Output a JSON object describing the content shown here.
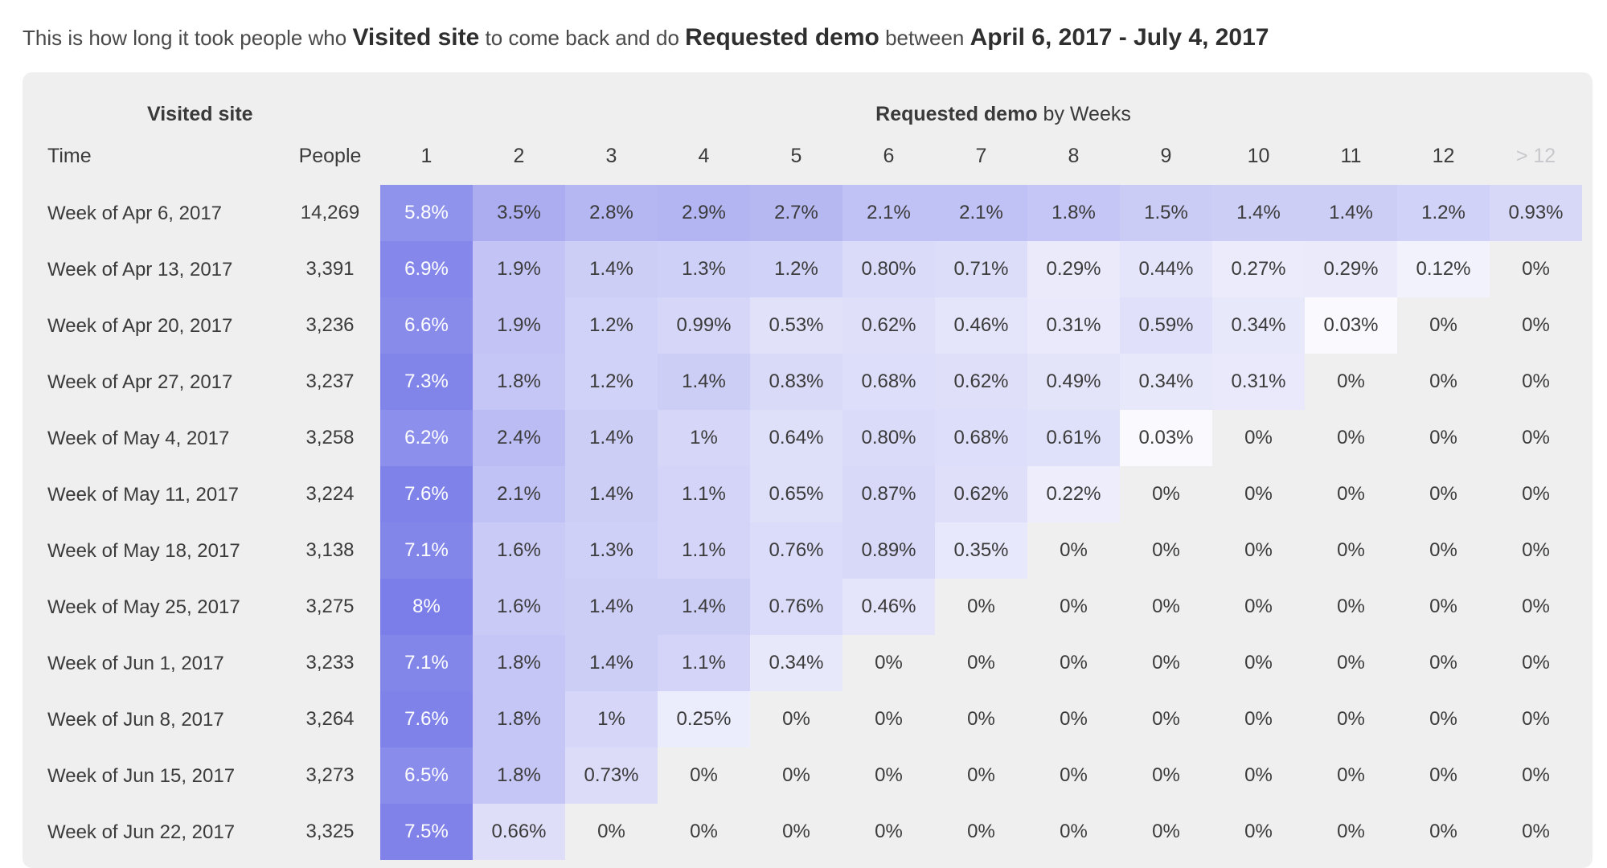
{
  "summary": {
    "prefix": "This is how long it took people who ",
    "event_a": "Visited site",
    "middle": " to come back and do ",
    "event_b": "Requested demo",
    "between": " between ",
    "date_range": "April 6, 2017 - July 4, 2017"
  },
  "colors": {
    "heat_max": "#7b7ee8",
    "heat_min": "#ffffff",
    "text_dark": "#3b3b3b",
    "text_light": "#ffffff"
  },
  "chart_data": {
    "type": "heatmap",
    "row_axis_title": "Visited site",
    "col_axis_title_bold": "Requested demo",
    "col_axis_title_rest": " by Weeks",
    "time_header": "Time",
    "people_header": "People",
    "columns": [
      "1",
      "2",
      "3",
      "4",
      "5",
      "6",
      "7",
      "8",
      "9",
      "10",
      "11",
      "12",
      "> 12"
    ],
    "rows": [
      {
        "label": "Week of Apr 6, 2017",
        "people": "14,269",
        "values": [
          "5.8%",
          "3.5%",
          "2.8%",
          "2.9%",
          "2.7%",
          "2.1%",
          "2.1%",
          "1.8%",
          "1.5%",
          "1.4%",
          "1.4%",
          "1.2%",
          "0.93%"
        ]
      },
      {
        "label": "Week of Apr 13, 2017",
        "people": "3,391",
        "values": [
          "6.9%",
          "1.9%",
          "1.4%",
          "1.3%",
          "1.2%",
          "0.80%",
          "0.71%",
          "0.29%",
          "0.44%",
          "0.27%",
          "0.29%",
          "0.12%",
          "0%"
        ]
      },
      {
        "label": "Week of Apr 20, 2017",
        "people": "3,236",
        "values": [
          "6.6%",
          "1.9%",
          "1.2%",
          "0.99%",
          "0.53%",
          "0.62%",
          "0.46%",
          "0.31%",
          "0.59%",
          "0.34%",
          "0.03%",
          "0%",
          "0%"
        ]
      },
      {
        "label": "Week of Apr 27, 2017",
        "people": "3,237",
        "values": [
          "7.3%",
          "1.8%",
          "1.2%",
          "1.4%",
          "0.83%",
          "0.68%",
          "0.62%",
          "0.49%",
          "0.34%",
          "0.31%",
          "0%",
          "0%",
          "0%"
        ]
      },
      {
        "label": "Week of May 4, 2017",
        "people": "3,258",
        "values": [
          "6.2%",
          "2.4%",
          "1.4%",
          "1%",
          "0.64%",
          "0.80%",
          "0.68%",
          "0.61%",
          "0.03%",
          "0%",
          "0%",
          "0%",
          "0%"
        ]
      },
      {
        "label": "Week of May 11, 2017",
        "people": "3,224",
        "values": [
          "7.6%",
          "2.1%",
          "1.4%",
          "1.1%",
          "0.65%",
          "0.87%",
          "0.62%",
          "0.22%",
          "0%",
          "0%",
          "0%",
          "0%",
          "0%"
        ]
      },
      {
        "label": "Week of May 18, 2017",
        "people": "3,138",
        "values": [
          "7.1%",
          "1.6%",
          "1.3%",
          "1.1%",
          "0.76%",
          "0.89%",
          "0.35%",
          "0%",
          "0%",
          "0%",
          "0%",
          "0%",
          "0%"
        ]
      },
      {
        "label": "Week of May 25, 2017",
        "people": "3,275",
        "values": [
          "8%",
          "1.6%",
          "1.4%",
          "1.4%",
          "0.76%",
          "0.46%",
          "0%",
          "0%",
          "0%",
          "0%",
          "0%",
          "0%",
          "0%"
        ]
      },
      {
        "label": "Week of Jun 1, 2017",
        "people": "3,233",
        "values": [
          "7.1%",
          "1.8%",
          "1.4%",
          "1.1%",
          "0.34%",
          "0%",
          "0%",
          "0%",
          "0%",
          "0%",
          "0%",
          "0%",
          "0%"
        ]
      },
      {
        "label": "Week of Jun 8, 2017",
        "people": "3,264",
        "values": [
          "7.6%",
          "1.8%",
          "1%",
          "0.25%",
          "0%",
          "0%",
          "0%",
          "0%",
          "0%",
          "0%",
          "0%",
          "0%",
          "0%"
        ]
      },
      {
        "label": "Week of Jun 15, 2017",
        "people": "3,273",
        "values": [
          "6.5%",
          "1.8%",
          "0.73%",
          "0%",
          "0%",
          "0%",
          "0%",
          "0%",
          "0%",
          "0%",
          "0%",
          "0%",
          "0%"
        ]
      },
      {
        "label": "Week of Jun 22, 2017",
        "people": "3,325",
        "values": [
          "7.5%",
          "0.66%",
          "0%",
          "0%",
          "0%",
          "0%",
          "0%",
          "0%",
          "0%",
          "0%",
          "0%",
          "0%",
          "0%"
        ]
      }
    ],
    "value_range": [
      0,
      8
    ]
  }
}
